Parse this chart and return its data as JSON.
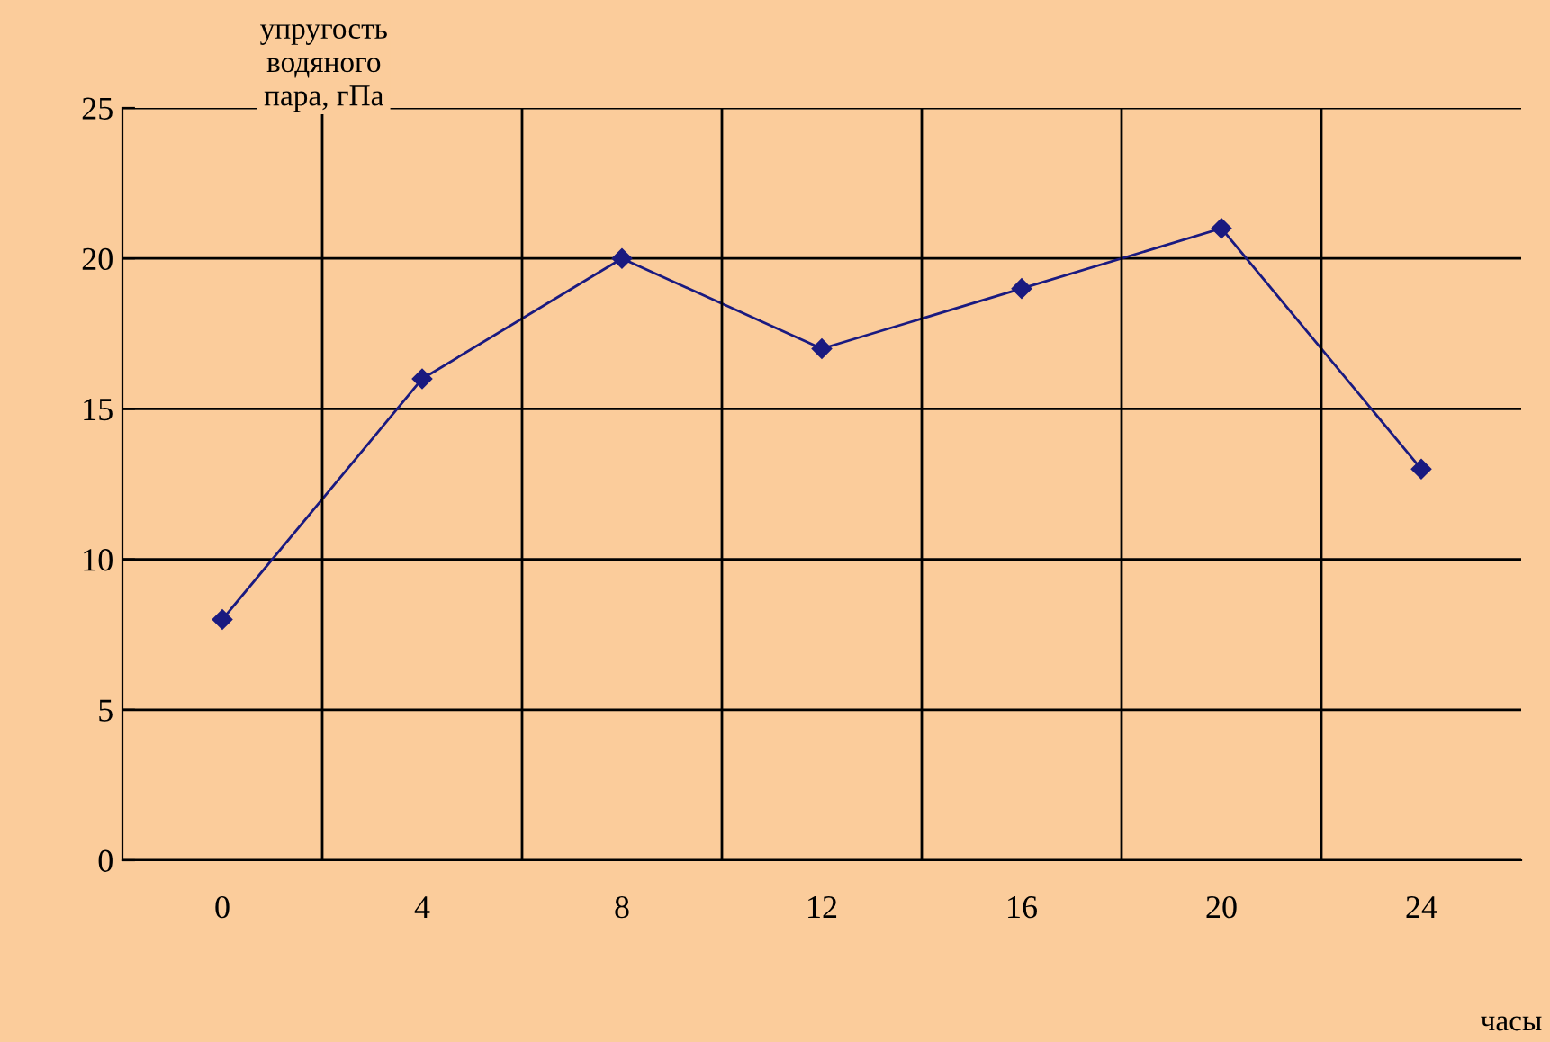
{
  "chart_data": {
    "type": "line",
    "ylabel": "упругость\nводяного\nпара, гПа",
    "xlabel": "часы",
    "categories": [
      "0",
      "4",
      "8",
      "12",
      "16",
      "20",
      "24"
    ],
    "series": [
      {
        "color": "#1a1a80",
        "values": [
          8,
          16,
          20,
          17,
          19,
          21,
          13
        ]
      }
    ],
    "ylim": [
      0,
      25
    ],
    "yticks": [
      0,
      5,
      10,
      15,
      20,
      25
    ],
    "grid": true,
    "marker": "diamond",
    "line_style": "solid"
  }
}
